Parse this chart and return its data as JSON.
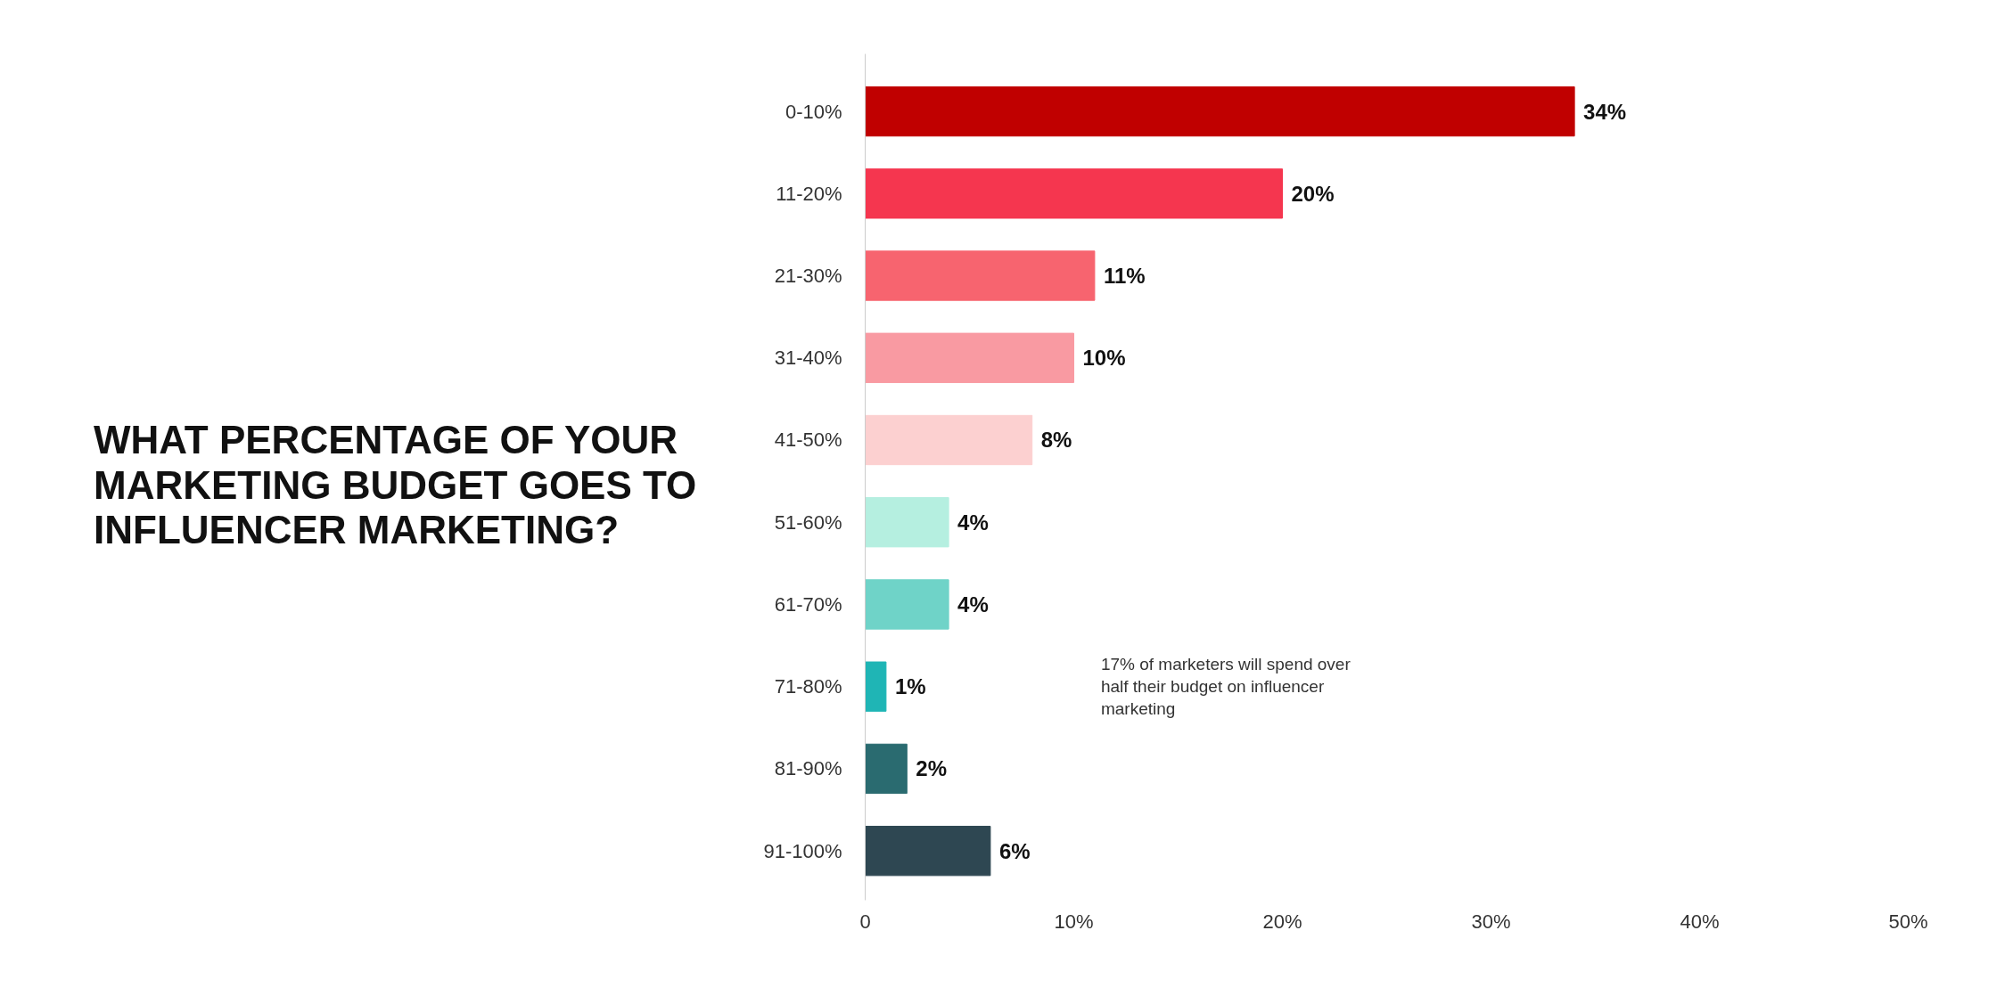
{
  "chart_data": {
    "type": "bar",
    "orientation": "horizontal",
    "title": "WHAT PERCENTAGE OF YOUR MARKETING BUDGET GOES TO INFLUENCER MARKETING?",
    "categories": [
      "0-10%",
      "11-20%",
      "21-30%",
      "31-40%",
      "41-50%",
      "51-60%",
      "61-70%",
      "71-80%",
      "81-90%",
      "91-100%"
    ],
    "values": [
      34,
      20,
      11,
      10,
      8,
      4,
      4,
      1,
      2,
      6
    ],
    "value_labels": [
      "34%",
      "20%",
      "11%",
      "10%",
      "8%",
      "4%",
      "4%",
      "1%",
      "2%",
      "6%"
    ],
    "colors": [
      "#c00000",
      "#f5364f",
      "#f7646f",
      "#f99aa2",
      "#fcd0d0",
      "#b5efe0",
      "#6fd3c8",
      "#1fb5b5",
      "#2a6b70",
      "#2e4752"
    ],
    "xlim": [
      0,
      50
    ],
    "xticks": [
      0,
      {
        "value": 10,
        "label": "10%"
      },
      {
        "value": 20,
        "label": "20%"
      },
      {
        "value": 30,
        "label": "30%"
      },
      {
        "value": 40,
        "label": "40%"
      },
      {
        "value": 50,
        "label": "50%"
      }
    ],
    "grid": false,
    "annotations": [
      "17% of marketers will spend over half their budget on influencer marketing"
    ]
  }
}
